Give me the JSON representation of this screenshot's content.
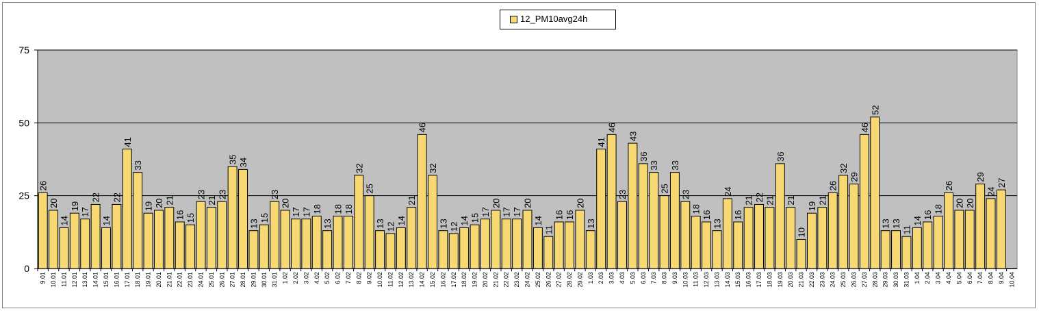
{
  "chart_data": {
    "type": "bar",
    "legend": "12_PM10avg24h",
    "legend_position": "top-center",
    "bar_color": "#f8d873",
    "plot_background": "#c0c0c0",
    "grid": true,
    "ylim": [
      0,
      75
    ],
    "yticks": [
      "0",
      "25",
      "50",
      "75"
    ],
    "categories": [
      "9.01",
      "10.01",
      "11.01",
      "12.01",
      "13.01",
      "14.01",
      "15.01",
      "16.01",
      "17.01",
      "18.01",
      "19.01",
      "20.01",
      "21.01",
      "22.01",
      "23.01",
      "24.01",
      "25.01",
      "26.01",
      "27.01",
      "28.01",
      "29.01",
      "30.01",
      "31.01",
      "1.02",
      "2.02",
      "3.02",
      "4.02",
      "5.02",
      "6.02",
      "7.02",
      "8.02",
      "9.02",
      "10.02",
      "11.02",
      "12.02",
      "13.02",
      "14.02",
      "15.02",
      "16.02",
      "17.02",
      "18.02",
      "19.02",
      "20.02",
      "21.02",
      "22.02",
      "23.02",
      "24.02",
      "25.02",
      "26.02",
      "27.02",
      "28.02",
      "29.02",
      "1.03",
      "2.03",
      "3.03",
      "4.03",
      "5.03",
      "6.03",
      "7.03",
      "8.03",
      "9.03",
      "10.03",
      "11.03",
      "12.03",
      "13.03",
      "14.03",
      "15.03",
      "16.03",
      "17.03",
      "18.03",
      "19.03",
      "20.03",
      "21.03",
      "22.03",
      "23.03",
      "24.03",
      "25.03",
      "26.03",
      "27.03",
      "28.03",
      "29.03",
      "30.03",
      "31.03",
      "1.04",
      "2.04",
      "3.04",
      "4.04",
      "5.04",
      "6.04",
      "7.04",
      "8.04",
      "9.04",
      "10.04"
    ],
    "values": [
      26,
      20,
      14,
      19,
      17,
      22,
      14,
      22,
      41,
      33,
      19,
      20,
      21,
      16,
      15,
      23,
      21,
      23,
      35,
      34,
      13,
      15,
      23,
      20,
      17,
      17,
      18,
      13,
      18,
      18,
      32,
      25,
      13,
      12,
      14,
      21,
      46,
      32,
      13,
      12,
      14,
      15,
      17,
      20,
      17,
      17,
      20,
      14,
      11,
      16,
      16,
      20,
      13,
      41,
      46,
      23,
      43,
      36,
      33,
      25,
      33,
      23,
      18,
      16,
      13,
      24,
      16,
      21,
      22,
      21,
      36,
      21,
      10,
      19,
      21,
      26,
      32,
      29,
      46,
      52,
      13,
      13,
      11,
      14,
      16,
      18,
      26,
      20,
      20,
      29,
      24,
      27,
      null
    ],
    "labels": [
      "26",
      "20",
      "14",
      "19",
      "17",
      "22",
      "14",
      "22",
      "41",
      "33",
      "19",
      "20",
      "21",
      "16",
      "15",
      "23",
      "21",
      "23",
      "35",
      "34",
      "13",
      "15",
      "23",
      "20",
      "17",
      "17",
      "18",
      "13",
      "18",
      "18",
      "32",
      "25",
      "13",
      "12",
      "14",
      "21",
      "46",
      "32",
      "13",
      "12",
      "14",
      "15",
      "17",
      "20",
      "17",
      "17",
      "20",
      "14",
      "11",
      "16",
      "16",
      "20",
      "13",
      "41",
      "46",
      "23",
      "43",
      "36",
      "33",
      "25",
      "33",
      "23",
      "18",
      "16",
      "13",
      "24",
      "16",
      "21",
      "22",
      "21",
      "36",
      "21",
      "10",
      "19",
      "21",
      "26",
      "32",
      "29",
      "46",
      "52",
      "13",
      "13",
      "11",
      "14",
      "16",
      "18",
      "26",
      "20",
      "20",
      "29",
      "24",
      "27",
      ""
    ]
  }
}
